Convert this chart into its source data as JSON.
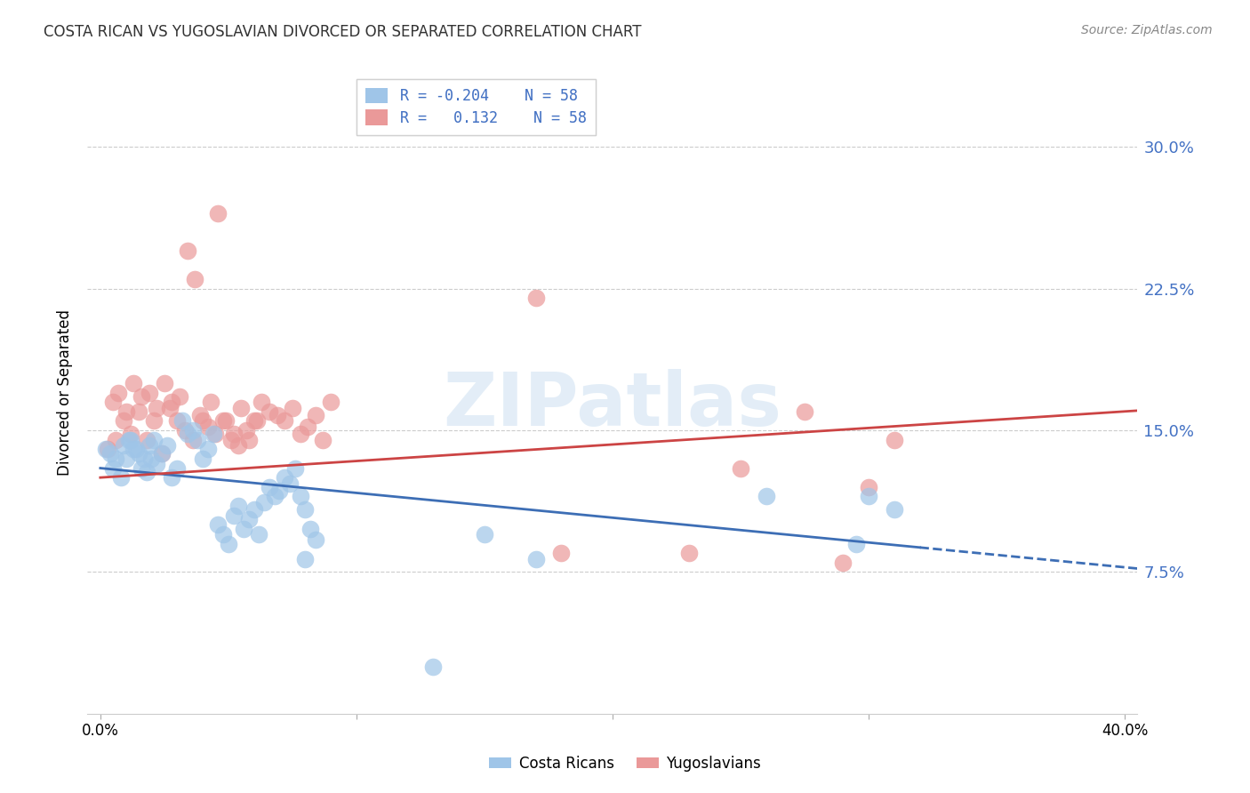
{
  "title": "COSTA RICAN VS YUGOSLAVIAN DIVORCED OR SEPARATED CORRELATION CHART",
  "source": "Source: ZipAtlas.com",
  "ylabel": "Divorced or Separated",
  "yticks": [
    "7.5%",
    "15.0%",
    "22.5%",
    "30.0%"
  ],
  "ytick_vals": [
    0.075,
    0.15,
    0.225,
    0.3
  ],
  "xtick_vals": [
    0.0,
    0.1,
    0.2,
    0.3,
    0.4
  ],
  "xlim": [
    -0.005,
    0.405
  ],
  "ylim": [
    0.0,
    0.34
  ],
  "blue_color": "#9fc5e8",
  "pink_color": "#ea9999",
  "blue_line_color": "#3d6eb5",
  "pink_line_color": "#cc4444",
  "watermark": "ZIPatlas",
  "blue_scatter_x": [
    0.005,
    0.008,
    0.01,
    0.012,
    0.014,
    0.016,
    0.018,
    0.02,
    0.022,
    0.024,
    0.026,
    0.028,
    0.03,
    0.032,
    0.034,
    0.036,
    0.038,
    0.04,
    0.042,
    0.044,
    0.046,
    0.048,
    0.05,
    0.052,
    0.054,
    0.056,
    0.058,
    0.06,
    0.062,
    0.064,
    0.066,
    0.068,
    0.07,
    0.072,
    0.074,
    0.076,
    0.078,
    0.08,
    0.082,
    0.084,
    0.002,
    0.004,
    0.006,
    0.009,
    0.011,
    0.013,
    0.015,
    0.017,
    0.019,
    0.021,
    0.15,
    0.17,
    0.26,
    0.295,
    0.3,
    0.31,
    0.13,
    0.08
  ],
  "blue_scatter_y": [
    0.13,
    0.125,
    0.135,
    0.145,
    0.14,
    0.13,
    0.128,
    0.135,
    0.132,
    0.138,
    0.142,
    0.125,
    0.13,
    0.155,
    0.148,
    0.15,
    0.145,
    0.135,
    0.14,
    0.148,
    0.1,
    0.095,
    0.09,
    0.105,
    0.11,
    0.098,
    0.103,
    0.108,
    0.095,
    0.112,
    0.12,
    0.115,
    0.118,
    0.125,
    0.122,
    0.13,
    0.115,
    0.108,
    0.098,
    0.092,
    0.14,
    0.138,
    0.135,
    0.142,
    0.145,
    0.14,
    0.138,
    0.135,
    0.142,
    0.145,
    0.095,
    0.082,
    0.115,
    0.09,
    0.115,
    0.108,
    0.025,
    0.082
  ],
  "pink_scatter_x": [
    0.003,
    0.006,
    0.009,
    0.012,
    0.015,
    0.018,
    0.021,
    0.024,
    0.027,
    0.03,
    0.033,
    0.036,
    0.039,
    0.042,
    0.045,
    0.048,
    0.051,
    0.054,
    0.057,
    0.06,
    0.063,
    0.066,
    0.069,
    0.072,
    0.075,
    0.078,
    0.081,
    0.084,
    0.087,
    0.09,
    0.005,
    0.007,
    0.01,
    0.013,
    0.016,
    0.019,
    0.022,
    0.025,
    0.028,
    0.031,
    0.034,
    0.037,
    0.04,
    0.043,
    0.046,
    0.049,
    0.052,
    0.055,
    0.058,
    0.061,
    0.18,
    0.25,
    0.3,
    0.31,
    0.17,
    0.29,
    0.23,
    0.275
  ],
  "pink_scatter_y": [
    0.14,
    0.145,
    0.155,
    0.148,
    0.16,
    0.145,
    0.155,
    0.138,
    0.162,
    0.155,
    0.15,
    0.145,
    0.158,
    0.152,
    0.148,
    0.155,
    0.145,
    0.142,
    0.15,
    0.155,
    0.165,
    0.16,
    0.158,
    0.155,
    0.162,
    0.148,
    0.152,
    0.158,
    0.145,
    0.165,
    0.165,
    0.17,
    0.16,
    0.175,
    0.168,
    0.17,
    0.162,
    0.175,
    0.165,
    0.168,
    0.245,
    0.23,
    0.155,
    0.165,
    0.265,
    0.155,
    0.148,
    0.162,
    0.145,
    0.155,
    0.085,
    0.13,
    0.12,
    0.145,
    0.22,
    0.08,
    0.085,
    0.16
  ]
}
